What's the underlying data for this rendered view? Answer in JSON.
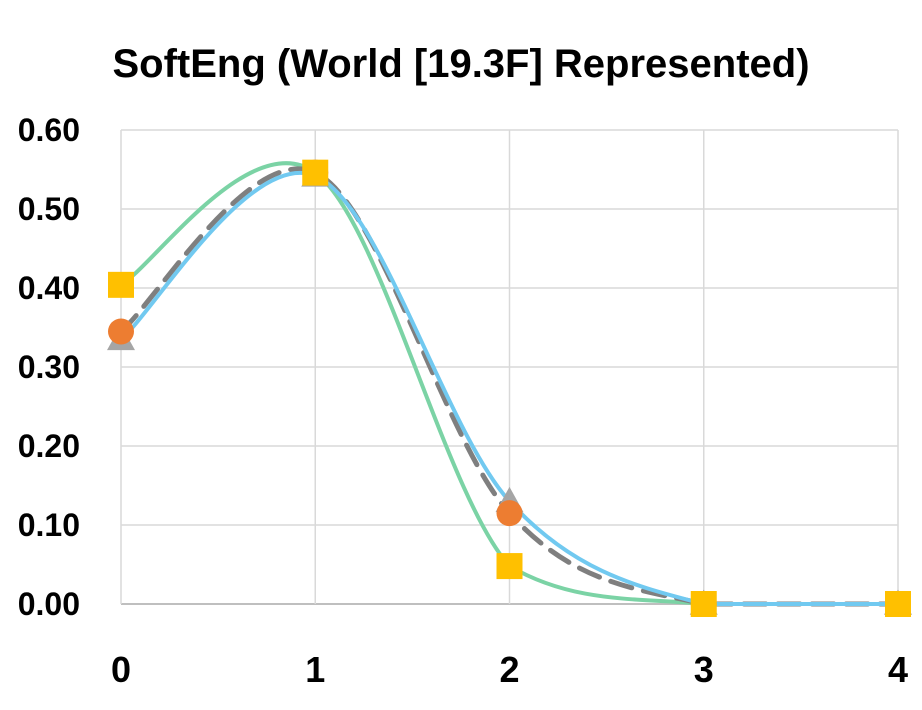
{
  "chart_data": {
    "type": "line",
    "title": "SoftEng (World [19.3F] Represented)",
    "xlabel": "",
    "ylabel": "",
    "xlim": [
      0,
      4
    ],
    "ylim": [
      0,
      0.6
    ],
    "x_ticks": [
      "0",
      "1",
      "2",
      "3",
      "4"
    ],
    "y_ticks": [
      "0.00",
      "0.10",
      "0.20",
      "0.30",
      "0.40",
      "0.50",
      "0.60"
    ],
    "grid": true,
    "legend": "none",
    "x": [
      0,
      1,
      2,
      3,
      4
    ],
    "series": [
      {
        "marker": "square",
        "color": "#FFC000",
        "line_color": "#7BD3A5",
        "values": [
          0.404,
          0.546,
          0.048,
          0.0,
          0.0
        ]
      },
      {
        "marker": "circle",
        "color": "#ED7D31",
        "line_color": "#7F7F7F",
        "values": [
          0.345,
          0.546,
          0.115,
          0.0,
          0.0
        ]
      },
      {
        "marker": "triangle",
        "color": "#A5A5A5",
        "line_color": "#71C9F0",
        "values": [
          0.335,
          0.542,
          0.13,
          0.0,
          0.0
        ]
      }
    ]
  }
}
